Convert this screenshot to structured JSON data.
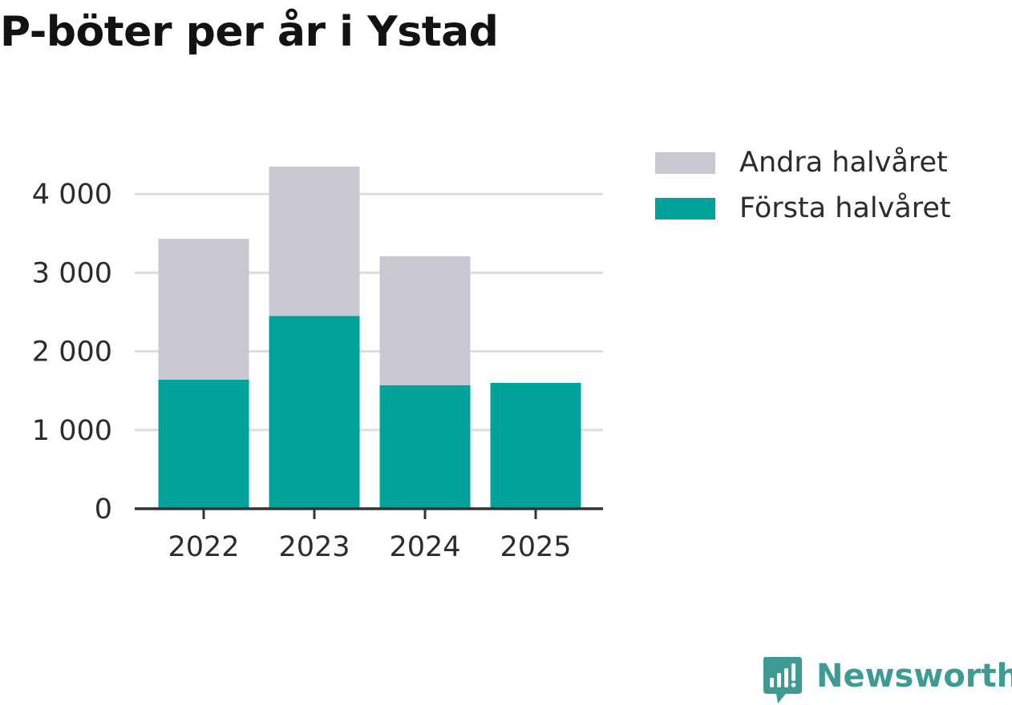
{
  "title": "P-böter per år i Ystad",
  "colors": {
    "first_half": "#00a39b",
    "second_half": "#c8c7d2",
    "grid": "#dddddd",
    "axis": "#333333",
    "text": "#2c2c2c",
    "brand": "#3e9b94"
  },
  "legend": [
    {
      "label": "Andra halvåret",
      "color": "#c8c7d2"
    },
    {
      "label": "Första halvåret",
      "color": "#00a39b"
    }
  ],
  "chart_data": {
    "type": "bar",
    "stacked": true,
    "title": "P-böter per år i Ystad",
    "categories": [
      "2022",
      "2023",
      "2024",
      "2025"
    ],
    "series": [
      {
        "name": "Första halvåret",
        "values": [
          1640,
          2450,
          1570,
          1600
        ],
        "color": "#00a39b"
      },
      {
        "name": "Andra halvåret",
        "values": [
          1790,
          1900,
          1640,
          0
        ],
        "color": "#c8c7d2"
      }
    ],
    "yticks": [
      0,
      1000,
      2000,
      3000,
      4000
    ],
    "ytick_labels": [
      "0",
      "1 000",
      "2 000",
      "3 000",
      "4 000"
    ],
    "ylim": [
      0,
      4500
    ],
    "grid": true,
    "legend_position": "top-right"
  },
  "brand": {
    "name": "Newsworthy",
    "icon": "newsworthy-logo-icon"
  }
}
